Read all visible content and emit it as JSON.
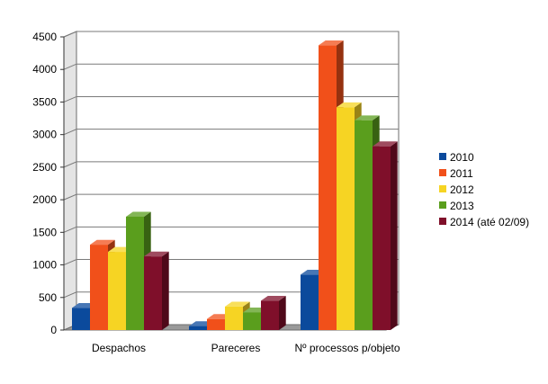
{
  "chart_data": {
    "type": "bar",
    "title": "",
    "xlabel": "",
    "ylabel": "",
    "ylim": [
      0,
      4500
    ],
    "yticks": [
      0,
      500,
      1000,
      1500,
      2000,
      2500,
      3000,
      3500,
      4000,
      4500
    ],
    "grid": true,
    "legend_position": "right",
    "categories": [
      "Despachos",
      "Pareceres",
      "Nº processos p/objeto"
    ],
    "series": [
      {
        "name": "2010",
        "color": "#0b4a9c",
        "values": [
          340,
          60,
          850
        ]
      },
      {
        "name": "2011",
        "color": "#f1501a",
        "values": [
          1310,
          170,
          4370
        ]
      },
      {
        "name": "2012",
        "color": "#f6d423",
        "values": [
          1200,
          360,
          3420
        ]
      },
      {
        "name": "2013",
        "color": "#5a9e1d",
        "values": [
          1740,
          270,
          3220
        ]
      },
      {
        "name": "2014 (até 02/09)",
        "color": "#7f0f2a",
        "values": [
          1130,
          450,
          2820
        ]
      }
    ]
  }
}
